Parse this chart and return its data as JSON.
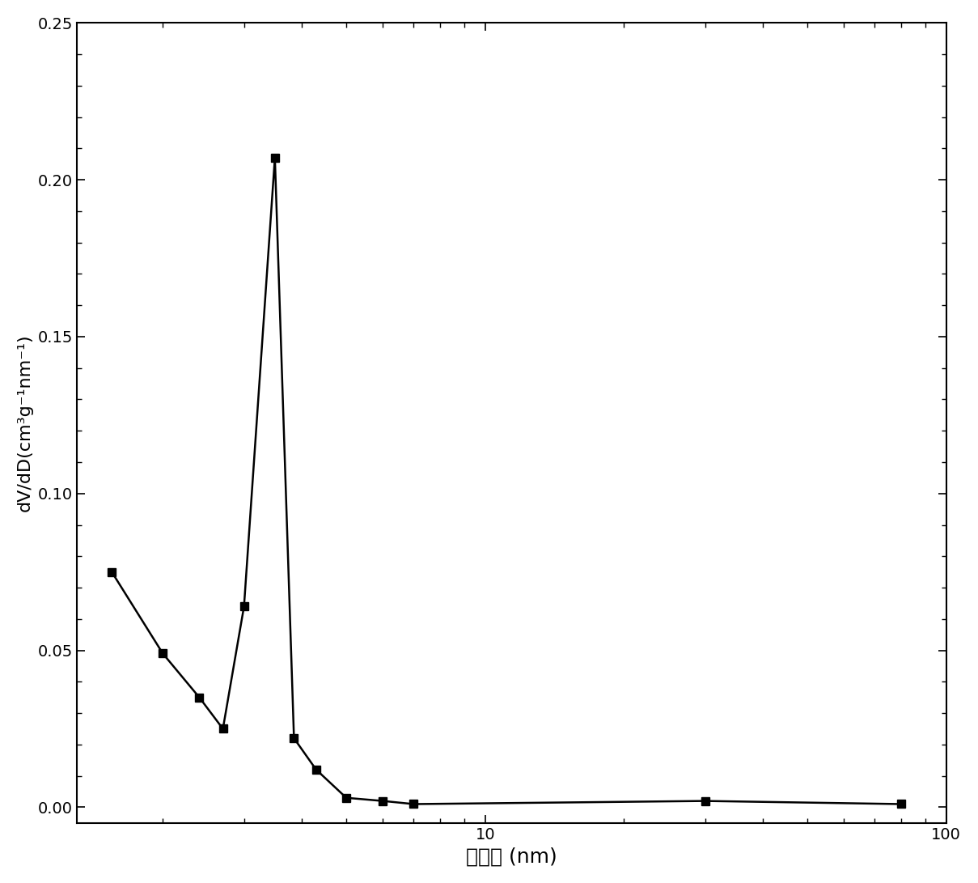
{
  "x": [
    1.55,
    2.0,
    2.4,
    2.7,
    3.0,
    3.5,
    3.85,
    4.3,
    5.0,
    6.0,
    7.0,
    30.0,
    80.0
  ],
  "y": [
    0.075,
    0.049,
    0.035,
    0.025,
    0.064,
    0.207,
    0.022,
    0.012,
    0.003,
    0.002,
    0.001,
    0.002,
    0.001
  ],
  "xlabel": "孔尺寸 (nm)",
  "ylabel": "dV/dD(cm³g⁻¹nm⁻¹)",
  "xlim_left": 1.3,
  "xlim_right": 100.0,
  "ylim": [
    -0.005,
    0.25
  ],
  "line_color": "#000000",
  "marker": "s",
  "marker_size": 7,
  "line_width": 1.8,
  "background_color": "#ffffff",
  "ylabel_fontsize": 16,
  "xlabel_fontsize": 18,
  "tick_fontsize": 14,
  "yticks": [
    0.0,
    0.05,
    0.1,
    0.15,
    0.2,
    0.25
  ],
  "ytick_labels": [
    "0.00",
    "0.05",
    "0.10",
    "0.15",
    "0.20",
    "0.25"
  ]
}
